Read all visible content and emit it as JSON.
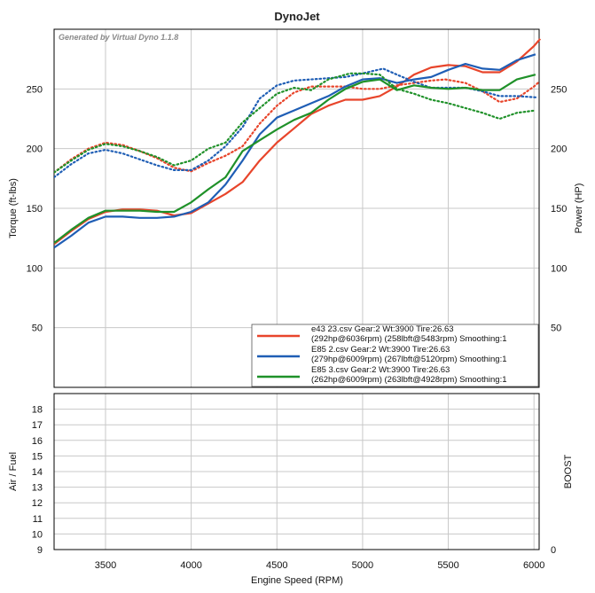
{
  "chart_data": {
    "type": "line",
    "title": "DynoJet",
    "watermark": "Generated by Virtual Dyno 1.1.8",
    "xlabel": "Engine Speed (RPM)",
    "xlim": [
      3200,
      6030
    ],
    "xticks": [
      3500,
      4000,
      4500,
      5000,
      5500,
      6000
    ],
    "top_panel": {
      "ylabel_left": "Torque (ft-lbs)",
      "ylabel_right": "Power (HP)",
      "ylim": [
        0,
        300
      ],
      "yticks": [
        50,
        100,
        150,
        200,
        250
      ],
      "grid": true
    },
    "bottom_panel": {
      "ylabel_left": "Air / Fuel",
      "ylabel_right": "BOOST",
      "ylim": [
        9,
        19
      ],
      "yticks": [
        9,
        10,
        11,
        12,
        13,
        14,
        15,
        16,
        17,
        18
      ],
      "right_ticks": [
        0
      ],
      "grid": true
    },
    "legend_position": "bottom-right",
    "series": [
      {
        "color": "#e8452b",
        "legend": [
          "e43 23.csv Gear:2 Wt:3900 Tire:26.63",
          "(292hp@6036rpm) (258lbft@5483rpm) Smoothing:1"
        ],
        "power_x": [
          3200,
          3300,
          3400,
          3500,
          3600,
          3700,
          3800,
          3900,
          4000,
          4100,
          4200,
          4300,
          4400,
          4500,
          4600,
          4700,
          4800,
          4900,
          5000,
          5100,
          5200,
          5300,
          5400,
          5500,
          5600,
          5700,
          5800,
          5900,
          6000,
          6036
        ],
        "power": [
          120,
          131,
          141,
          147,
          149,
          149,
          148,
          144,
          146,
          154,
          162,
          172,
          190,
          205,
          217,
          229,
          236,
          241,
          241,
          244,
          252,
          262,
          268,
          270,
          269,
          264,
          264,
          273,
          286,
          292
        ],
        "torque_x": [
          3200,
          3300,
          3400,
          3500,
          3600,
          3700,
          3800,
          3900,
          4000,
          4100,
          4200,
          4300,
          4400,
          4500,
          4600,
          4700,
          4800,
          4900,
          5000,
          5100,
          5200,
          5300,
          5400,
          5483,
          5600,
          5700,
          5800,
          5900,
          6000,
          6030
        ],
        "torque": [
          180,
          191,
          200,
          205,
          203,
          198,
          192,
          184,
          181,
          188,
          194,
          202,
          221,
          236,
          247,
          252,
          252,
          252,
          250,
          250,
          253,
          255,
          257,
          258,
          255,
          248,
          239,
          242,
          252,
          256
        ]
      },
      {
        "color": "#1f5eb5",
        "legend": [
          "E85 2.csv Gear:2 Wt:3900 Tire:26.63",
          "(279hp@6009rpm) (267lbft@5120rpm) Smoothing:1"
        ],
        "power_x": [
          3200,
          3300,
          3400,
          3500,
          3600,
          3700,
          3800,
          3900,
          4000,
          4100,
          4200,
          4300,
          4400,
          4500,
          4600,
          4700,
          4800,
          4900,
          5000,
          5100,
          5200,
          5300,
          5400,
          5500,
          5600,
          5700,
          5800,
          5900,
          6009
        ],
        "power": [
          117,
          127,
          138,
          143,
          143,
          142,
          142,
          143,
          147,
          155,
          170,
          190,
          212,
          226,
          232,
          238,
          244,
          252,
          258,
          259,
          255,
          258,
          260,
          266,
          271,
          267,
          266,
          274,
          279
        ],
        "torque_x": [
          3200,
          3300,
          3400,
          3500,
          3600,
          3700,
          3800,
          3900,
          4000,
          4100,
          4200,
          4300,
          4400,
          4500,
          4600,
          4700,
          4800,
          4900,
          5000,
          5120,
          5200,
          5300,
          5400,
          5500,
          5600,
          5700,
          5800,
          5900,
          6009
        ],
        "torque": [
          176,
          187,
          196,
          199,
          196,
          191,
          186,
          182,
          182,
          190,
          202,
          218,
          242,
          253,
          257,
          258,
          259,
          260,
          263,
          267,
          262,
          256,
          251,
          251,
          251,
          248,
          244,
          244,
          243
        ]
      },
      {
        "color": "#1f9129",
        "legend": [
          "E85 3.csv Gear:2 Wt:3900 Tire:26.63",
          "(262hp@6009rpm) (263lbft@4928rpm) Smoothing:1"
        ],
        "power_x": [
          3200,
          3300,
          3400,
          3500,
          3600,
          3700,
          3800,
          3900,
          4000,
          4100,
          4200,
          4300,
          4400,
          4500,
          4600,
          4700,
          4800,
          4900,
          5000,
          5100,
          5200,
          5300,
          5400,
          5500,
          5600,
          5700,
          5800,
          5900,
          6009
        ],
        "power": [
          121,
          132,
          142,
          148,
          148,
          148,
          147,
          147,
          155,
          166,
          176,
          198,
          207,
          216,
          224,
          230,
          241,
          250,
          256,
          258,
          249,
          253,
          251,
          250,
          251,
          249,
          249,
          258,
          262
        ],
        "torque_x": [
          3200,
          3300,
          3400,
          3500,
          3600,
          3700,
          3800,
          3900,
          4000,
          4100,
          4200,
          4300,
          4400,
          4500,
          4600,
          4700,
          4800,
          4900,
          4928,
          5000,
          5100,
          5200,
          5300,
          5400,
          5500,
          5600,
          5700,
          5800,
          5900,
          6009
        ],
        "torque": [
          180,
          190,
          199,
          204,
          202,
          198,
          193,
          186,
          190,
          200,
          205,
          222,
          234,
          246,
          251,
          249,
          258,
          262,
          263,
          263,
          262,
          250,
          246,
          241,
          238,
          234,
          230,
          225,
          230,
          232
        ]
      }
    ]
  }
}
